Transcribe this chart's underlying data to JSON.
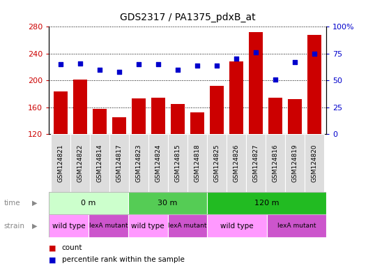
{
  "title": "GDS2317 / PA1375_pdxB_at",
  "samples": [
    "GSM124821",
    "GSM124822",
    "GSM124814",
    "GSM124817",
    "GSM124823",
    "GSM124824",
    "GSM124815",
    "GSM124818",
    "GSM124825",
    "GSM124826",
    "GSM124827",
    "GSM124816",
    "GSM124819",
    "GSM124820"
  ],
  "counts": [
    184,
    201,
    158,
    145,
    173,
    174,
    165,
    152,
    192,
    228,
    272,
    174,
    172,
    268
  ],
  "percentile": [
    65,
    66,
    60,
    58,
    65,
    65,
    60,
    64,
    64,
    70,
    76,
    51,
    67,
    75
  ],
  "ylim_left": [
    120,
    280
  ],
  "ylim_right": [
    0,
    100
  ],
  "yticks_left": [
    120,
    160,
    200,
    240,
    280
  ],
  "yticks_right": [
    0,
    25,
    50,
    75,
    100
  ],
  "bar_color": "#cc0000",
  "dot_color": "#0000cc",
  "time_groups": [
    {
      "label": "0 m",
      "start": 0,
      "end": 4,
      "color": "#ccffcc"
    },
    {
      "label": "30 m",
      "start": 4,
      "end": 8,
      "color": "#55cc55"
    },
    {
      "label": "120 m",
      "start": 8,
      "end": 14,
      "color": "#22bb22"
    }
  ],
  "strain_groups": [
    {
      "label": "wild type",
      "start": 0,
      "end": 2,
      "color": "#ff99ff"
    },
    {
      "label": "lexA mutant",
      "start": 2,
      "end": 4,
      "color": "#cc55cc"
    },
    {
      "label": "wild type",
      "start": 4,
      "end": 6,
      "color": "#ff99ff"
    },
    {
      "label": "lexA mutant",
      "start": 6,
      "end": 8,
      "color": "#cc55cc"
    },
    {
      "label": "wild type",
      "start": 8,
      "end": 11,
      "color": "#ff99ff"
    },
    {
      "label": "lexA mutant",
      "start": 11,
      "end": 14,
      "color": "#cc55cc"
    }
  ],
  "row_label_time": "time",
  "row_label_strain": "strain",
  "legend_count": "count",
  "legend_pct": "percentile rank within the sample",
  "background_color": "#ffffff",
  "left_label_color": "#cc0000",
  "right_label_color": "#0000cc"
}
